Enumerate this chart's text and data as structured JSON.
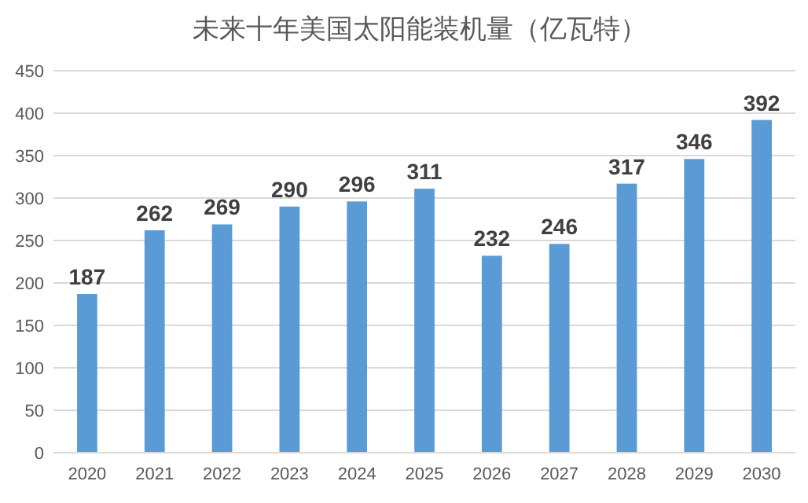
{
  "chart_data": {
    "type": "bar",
    "title": "未来十年美国太阳能装机量（亿瓦特）",
    "categories": [
      "2020",
      "2021",
      "2022",
      "2023",
      "2024",
      "2025",
      "2026",
      "2027",
      "2028",
      "2029",
      "2030"
    ],
    "values": [
      187,
      262,
      269,
      290,
      296,
      311,
      232,
      246,
      317,
      346,
      392
    ],
    "color": "#5b9bd5",
    "ylim": [
      0,
      450
    ],
    "yticks": [
      0,
      50,
      100,
      150,
      200,
      250,
      300,
      350,
      400,
      450
    ],
    "grid": "y",
    "data_labels": true
  }
}
